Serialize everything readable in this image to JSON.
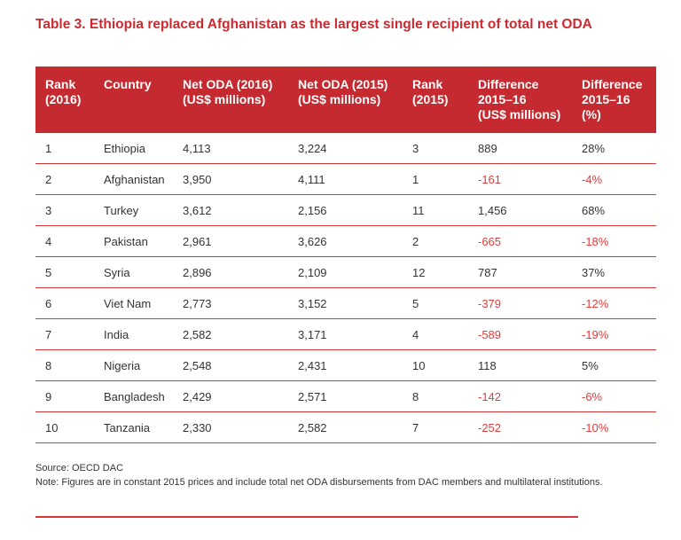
{
  "title": "Table 3. Ethiopia replaced Afghanistan as the largest single recipient of total net ODA",
  "colors": {
    "accent": "#c42a2f",
    "negative": "#e53a3a",
    "rule": "#d9363a"
  },
  "table": {
    "headers": [
      "Rank\n(2016)",
      "Country",
      "Net ODA (2016)\n(US$ millions)",
      "Net ODA (2015)\n(US$ millions)",
      "Rank\n(2015)",
      "Difference\n2015–16\n(US$ millions)",
      "Difference\n2015–16\n(%)"
    ],
    "rows": [
      [
        "1",
        "Ethiopia",
        "4,113",
        "3,224",
        "3",
        "889",
        "28%"
      ],
      [
        "2",
        "Afghanistan",
        "3,950",
        "4,111",
        "1",
        "-161",
        "-4%"
      ],
      [
        "3",
        "Turkey",
        "3,612",
        "2,156",
        "11",
        "1,456",
        "68%"
      ],
      [
        "4",
        "Pakistan",
        "2,961",
        "3,626",
        "2",
        "-665",
        "-18%"
      ],
      [
        "5",
        "Syria",
        "2,896",
        "2,109",
        "12",
        "787",
        "37%"
      ],
      [
        "6",
        "Viet Nam",
        "2,773",
        "3,152",
        "5",
        "-379",
        "-12%"
      ],
      [
        "7",
        "India",
        "2,582",
        "3,171",
        "4",
        "-589",
        "-19%"
      ],
      [
        "8",
        "Nigeria",
        "2,548",
        "2,431",
        "10",
        "118",
        "5%"
      ],
      [
        "9",
        "Bangladesh",
        "2,429",
        "2,571",
        "8",
        "-142",
        "-6%"
      ],
      [
        "10",
        "Tanzania",
        "2,330",
        "2,582",
        "7",
        "-252",
        "-10%"
      ]
    ]
  },
  "source": "Source: OECD DAC",
  "note": "Note: Figures are in constant 2015 prices and include total net ODA disbursements from DAC members and multilateral institutions."
}
